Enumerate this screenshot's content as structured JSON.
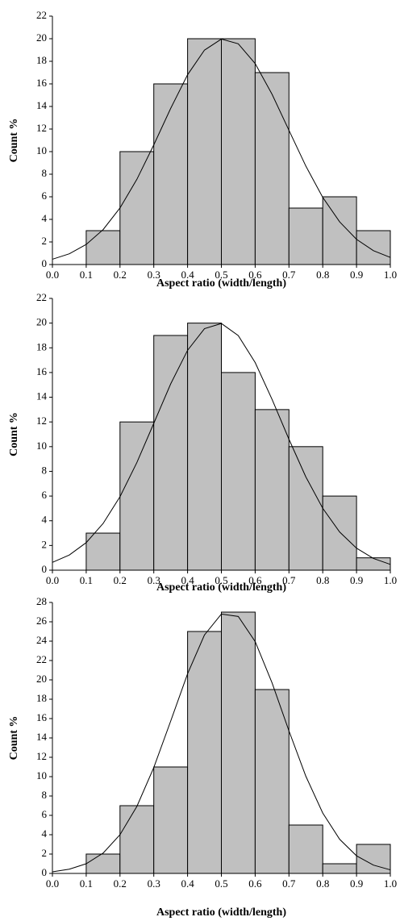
{
  "chart_data": [
    {
      "type": "histogram",
      "xlabel": "Aspect ratio (width/length)",
      "ylabel": "Count %",
      "color": "#c0c0c0",
      "bins": [
        0.1,
        0.2,
        0.3,
        0.4,
        0.5,
        0.6,
        0.7,
        0.8,
        0.9,
        1.0
      ],
      "values": [
        3,
        10,
        16,
        20,
        20,
        17,
        5,
        6,
        3
      ],
      "fit": {
        "color": "#000000",
        "x": [
          0,
          0.05,
          0.1,
          0.15,
          0.2,
          0.25,
          0.3,
          0.35,
          0.4,
          0.45,
          0.5,
          0.55,
          0.6,
          0.65,
          0.7,
          0.75,
          0.8,
          0.85,
          0.9,
          0.95,
          1.0
        ],
        "values": [
          0.47,
          0.95,
          1.78,
          3.09,
          5.01,
          7.55,
          10.6,
          13.83,
          16.81,
          18.99,
          19.97,
          19.55,
          17.8,
          15.08,
          11.89,
          8.72,
          5.95,
          3.78,
          2.23,
          1.23,
          0.63
        ]
      },
      "xlim": [
        0,
        1
      ],
      "ylim": [
        0,
        22
      ],
      "xticks": [
        {
          "value": 0,
          "label": "0.0"
        },
        0.1,
        0.2,
        0.3,
        0.4,
        0.5,
        0.6,
        0.7,
        0.8,
        0.9,
        {
          "value": 1,
          "label": "1.0"
        }
      ],
      "yticks": [
        0,
        2,
        4,
        6,
        8,
        10,
        12,
        14,
        16,
        18,
        20,
        22
      ]
    },
    {
      "type": "histogram",
      "xlabel": "Aspect ratio (width/length)",
      "ylabel": "Count %",
      "color": "#c0c0c0",
      "bins": [
        0.1,
        0.2,
        0.3,
        0.4,
        0.5,
        0.6,
        0.7,
        0.8,
        0.9,
        1.0
      ],
      "values": [
        3,
        12,
        19,
        20,
        16,
        13,
        10,
        6,
        1
      ],
      "fit": {
        "color": "#000000",
        "x": [
          0,
          0.05,
          0.1,
          0.15,
          0.2,
          0.25,
          0.3,
          0.35,
          0.4,
          0.45,
          0.5,
          0.55,
          0.6,
          0.65,
          0.7,
          0.75,
          0.8,
          0.85,
          0.9,
          0.95,
          1.0
        ],
        "values": [
          0.63,
          1.23,
          2.23,
          3.78,
          5.95,
          8.72,
          11.89,
          15.08,
          17.8,
          19.55,
          19.97,
          18.99,
          16.81,
          13.83,
          10.6,
          7.55,
          5.01,
          3.09,
          1.78,
          0.95,
          0.47
        ]
      },
      "xlim": [
        0,
        1
      ],
      "ylim": [
        0,
        22
      ],
      "xticks": [
        {
          "value": 0,
          "label": "0.0"
        },
        0.1,
        0.2,
        0.3,
        0.4,
        0.5,
        0.6,
        0.7,
        0.8,
        0.9,
        {
          "value": 1,
          "label": "1.0"
        }
      ],
      "yticks": [
        0,
        2,
        4,
        6,
        8,
        10,
        12,
        14,
        16,
        18,
        20,
        22
      ]
    },
    {
      "type": "histogram",
      "xlabel": "Aspect ratio (width/length)",
      "ylabel": "Count %",
      "color": "#c0c0c0",
      "bins": [
        0.1,
        0.2,
        0.3,
        0.4,
        0.5,
        0.6,
        0.7,
        0.8,
        0.9,
        1.0
      ],
      "values": [
        2,
        7,
        11,
        25,
        27,
        19,
        5,
        1,
        3
      ],
      "fit": {
        "color": "#000000",
        "x": [
          0,
          0.05,
          0.1,
          0.15,
          0.2,
          0.25,
          0.3,
          0.35,
          0.4,
          0.45,
          0.5,
          0.55,
          0.6,
          0.65,
          0.7,
          0.75,
          0.8,
          0.85,
          0.9,
          0.95,
          1.0
        ],
        "values": [
          0.17,
          0.44,
          1.0,
          2.1,
          4.0,
          6.93,
          10.94,
          15.74,
          20.63,
          24.64,
          26.8,
          26.55,
          23.96,
          19.69,
          14.73,
          10.04,
          6.24,
          3.53,
          1.82,
          0.86,
          0.37
        ]
      },
      "xlim": [
        0,
        1
      ],
      "ylim": [
        0,
        28
      ],
      "xticks": [
        {
          "value": 0,
          "label": "0.0"
        },
        0.1,
        0.2,
        0.3,
        0.4,
        0.5,
        0.6,
        0.7,
        0.8,
        0.9,
        {
          "value": 1,
          "label": "1.0"
        }
      ],
      "yticks": [
        0,
        2,
        4,
        6,
        8,
        10,
        12,
        14,
        16,
        18,
        20,
        22,
        24,
        26,
        28
      ]
    }
  ]
}
